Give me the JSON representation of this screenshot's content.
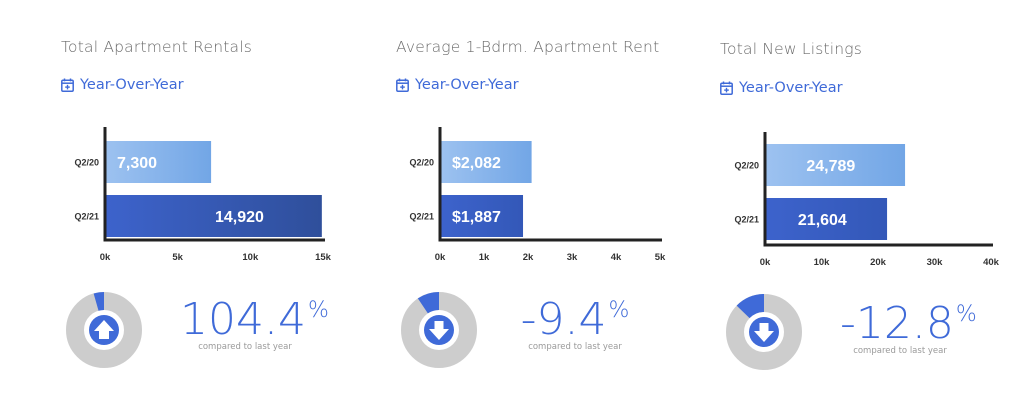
{
  "chart_data": [
    {
      "type": "bar",
      "title": "Total Apartment Rentals",
      "filter_label": "Year-Over-Year",
      "categories": [
        "Q2/20",
        "Q2/21"
      ],
      "values": [
        7300,
        14920
      ],
      "value_labels": [
        "7,300",
        "14,920"
      ],
      "xlim": [
        0,
        15000
      ],
      "xticks": [
        0,
        5000,
        10000,
        15000
      ],
      "xtick_labels": [
        "0k",
        "5k",
        "10k",
        "15k"
      ],
      "bar_colors": [
        "#72a6e6",
        "#2f4f9b"
      ],
      "change": {
        "value": 104.4,
        "value_text": "104.4",
        "unit": "%",
        "direction": "up",
        "caption": "compared to last year"
      }
    },
    {
      "type": "bar",
      "title": "Average 1-Bdrm. Apartment Rent",
      "filter_label": "Year-Over-Year",
      "categories": [
        "Q2/20",
        "Q2/21"
      ],
      "values": [
        2082,
        1887
      ],
      "value_labels": [
        "$2,082",
        "$1,887"
      ],
      "xlim": [
        0,
        5000
      ],
      "xticks": [
        0,
        1000,
        2000,
        3000,
        4000,
        5000
      ],
      "xtick_labels": [
        "0k",
        "1k",
        "2k",
        "3k",
        "4k",
        "5k"
      ],
      "bar_colors": [
        "#72a6e6",
        "#3358b8"
      ],
      "change": {
        "value": -9.4,
        "value_text": "-9.4",
        "unit": "%",
        "direction": "down",
        "caption": "compared to last year"
      }
    },
    {
      "type": "bar",
      "title": "Total New Listings",
      "filter_label": "Year-Over-Year",
      "categories": [
        "Q2/20",
        "Q2/21"
      ],
      "values": [
        24789,
        21604
      ],
      "value_labels": [
        "24,789",
        "21,604"
      ],
      "xlim": [
        0,
        40000
      ],
      "xticks": [
        0,
        10000,
        20000,
        30000,
        40000
      ],
      "xtick_labels": [
        "0k",
        "10k",
        "20k",
        "30k",
        "40k"
      ],
      "bar_colors": [
        "#72a6e6",
        "#3358b8"
      ],
      "change": {
        "value": -12.8,
        "value_text": "-12.8",
        "unit": "%",
        "direction": "down",
        "caption": "compared to last year"
      }
    }
  ],
  "colors": {
    "accent": "#3f6ad8",
    "donut_track": "#cdcdcd",
    "donut_fill": "#3f6ad8",
    "axis": "#222222"
  }
}
